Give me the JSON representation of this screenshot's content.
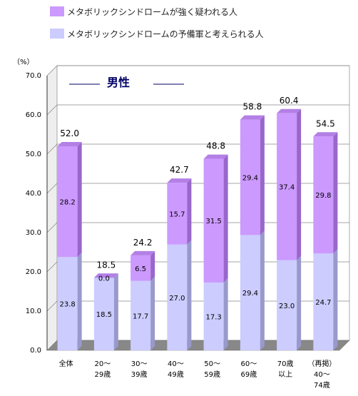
{
  "legend": [
    {
      "label": "メタボリックシンドロームが強く疑われる人",
      "color": "#cc99ff"
    },
    {
      "label": "メタボリックシンドロームの予備軍と考えられる人",
      "color": "#ccccff"
    }
  ],
  "chart_data": {
    "type": "bar",
    "stacked": true,
    "title": "男性",
    "ylabel": "（%）",
    "ylim": [
      0,
      70
    ],
    "yticks": [
      "0.0",
      "10.0",
      "20.0",
      "30.0",
      "40.0",
      "50.0",
      "60.0",
      "70.0"
    ],
    "grid": true,
    "categories": [
      [
        "全体"
      ],
      [
        "20～",
        "29歳"
      ],
      [
        "30～",
        "39歳"
      ],
      [
        "40～",
        "49歳"
      ],
      [
        "50～",
        "59歳"
      ],
      [
        "60～",
        "69歳"
      ],
      [
        "70歳",
        "以上"
      ],
      [
        "（再掲）",
        "40～",
        "74歳"
      ]
    ],
    "series": [
      {
        "name": "メタボリックシンドロームの予備軍と考えられる人",
        "color": "#ccccff",
        "values": [
          23.8,
          18.5,
          17.7,
          27.0,
          17.3,
          29.4,
          23.0,
          24.7
        ]
      },
      {
        "name": "メタボリックシンドロームが強く疑われる人",
        "color": "#cc99ff",
        "values": [
          28.2,
          0.0,
          6.5,
          15.7,
          31.5,
          29.4,
          37.4,
          29.8
        ]
      }
    ],
    "totals": [
      52.0,
      18.5,
      24.2,
      42.7,
      48.8,
      58.8,
      60.4,
      54.5
    ]
  }
}
